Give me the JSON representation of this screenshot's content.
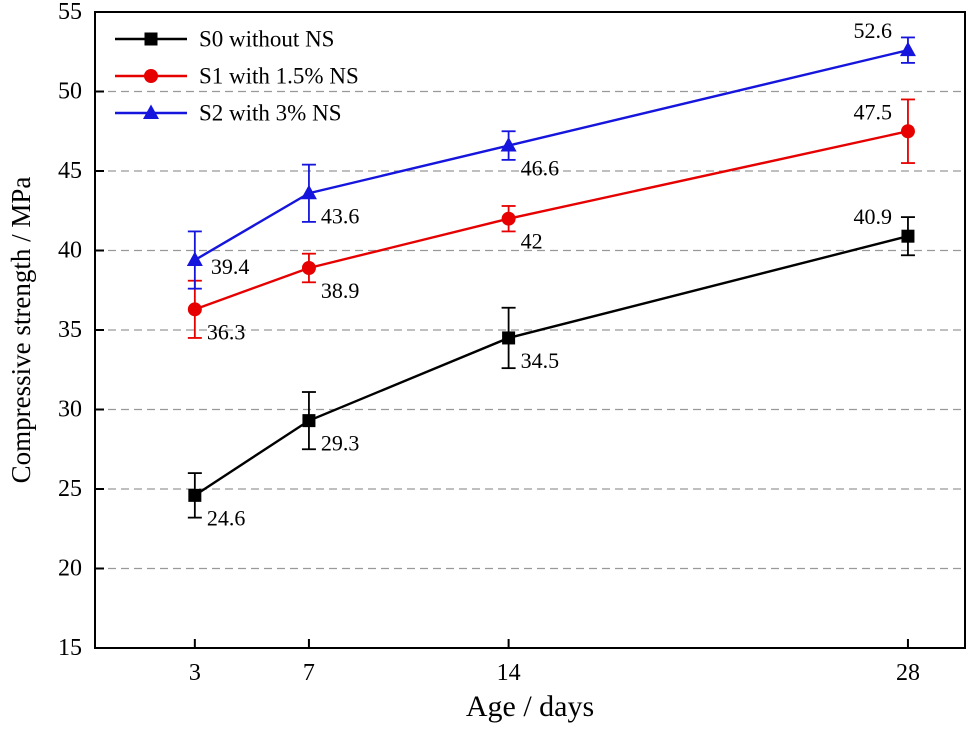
{
  "chart_data": {
    "type": "line",
    "title": "",
    "xlabel": "Age / days",
    "ylabel": "Compressive strength / MPa",
    "x": [
      3,
      7,
      14,
      28
    ],
    "xtick_labels": [
      "3",
      "7",
      "14",
      "28"
    ],
    "xlim": [
      -0.5,
      30
    ],
    "ylim": [
      15,
      55
    ],
    "yticks": [
      15,
      20,
      25,
      30,
      35,
      40,
      45,
      50,
      55
    ],
    "grid": "horizontal dashed lines at interior y ticks",
    "grid_color": "#999999",
    "frame_color": "#000000",
    "legend_position": "top-left inside plot",
    "series": [
      {
        "name": "S0 without NS",
        "color": "#000000",
        "marker": "square",
        "values": [
          24.6,
          29.3,
          34.5,
          40.9
        ],
        "errors": [
          1.4,
          1.8,
          1.9,
          1.2
        ],
        "labels": [
          "24.6",
          "29.3",
          "34.5",
          "40.9"
        ],
        "label_anchors": [
          "br",
          "br",
          "br",
          "tl"
        ]
      },
      {
        "name": "S1 with 1.5% NS",
        "color": "#e60000",
        "marker": "circle",
        "values": [
          36.3,
          38.9,
          42,
          47.5
        ],
        "errors": [
          1.8,
          0.9,
          0.8,
          2.0
        ],
        "labels": [
          "36.3",
          "38.9",
          "42",
          "47.5"
        ],
        "label_anchors": [
          "br",
          "br",
          "br",
          "tl"
        ]
      },
      {
        "name": "S2 with 3% NS",
        "color": "#1515dd",
        "marker": "triangle",
        "values": [
          39.4,
          43.6,
          46.6,
          52.6
        ],
        "errors": [
          1.8,
          1.8,
          0.9,
          0.8
        ],
        "labels": [
          "39.4",
          "43.6",
          "46.6",
          "52.6"
        ],
        "label_anchors": [
          "r",
          "br",
          "br",
          "tl"
        ]
      }
    ]
  }
}
